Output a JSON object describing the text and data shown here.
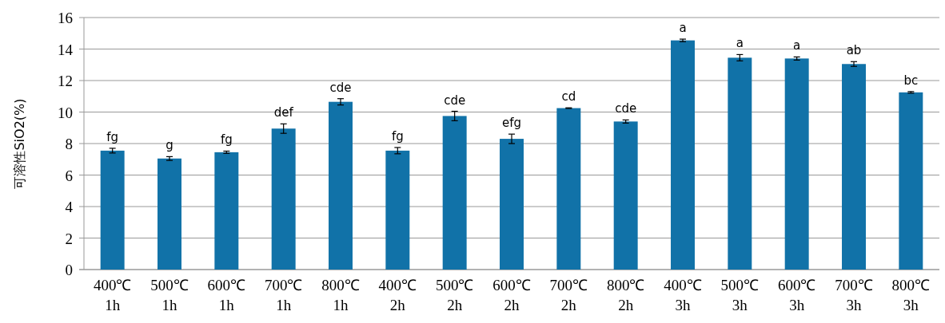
{
  "chart_data": {
    "type": "bar",
    "ylabel": "可溶性SiO2(%)",
    "categories": [
      "400℃\n1h",
      "500℃\n1h",
      "600℃\n1h",
      "700℃\n1h",
      "800℃\n1h",
      "400℃\n2h",
      "500℃\n2h",
      "600℃\n2h",
      "700℃\n2h",
      "800℃\n2h",
      "400℃\n3h",
      "500℃\n3h",
      "600℃\n3h",
      "700℃\n3h",
      "800℃\n3h"
    ],
    "values": [
      7.55,
      7.05,
      7.45,
      8.95,
      10.65,
      7.55,
      9.75,
      8.3,
      10.25,
      9.4,
      14.55,
      13.45,
      13.4,
      13.05,
      11.25
    ],
    "errors": [
      0.15,
      0.12,
      0.07,
      0.3,
      0.2,
      0.2,
      0.3,
      0.3,
      0.02,
      0.1,
      0.08,
      0.2,
      0.1,
      0.15,
      0.05
    ],
    "value_labels": [
      "fg",
      "g",
      "fg",
      "def",
      "cde",
      "fg",
      "cde",
      "efg",
      "cd",
      "cde",
      "a",
      "a",
      "a",
      "ab",
      "bc"
    ],
    "color": "#1172a8",
    "ylim": [
      0,
      16
    ],
    "yticks": [
      0,
      2,
      4,
      6,
      8,
      10,
      12,
      14,
      16
    ],
    "grid": "y"
  }
}
